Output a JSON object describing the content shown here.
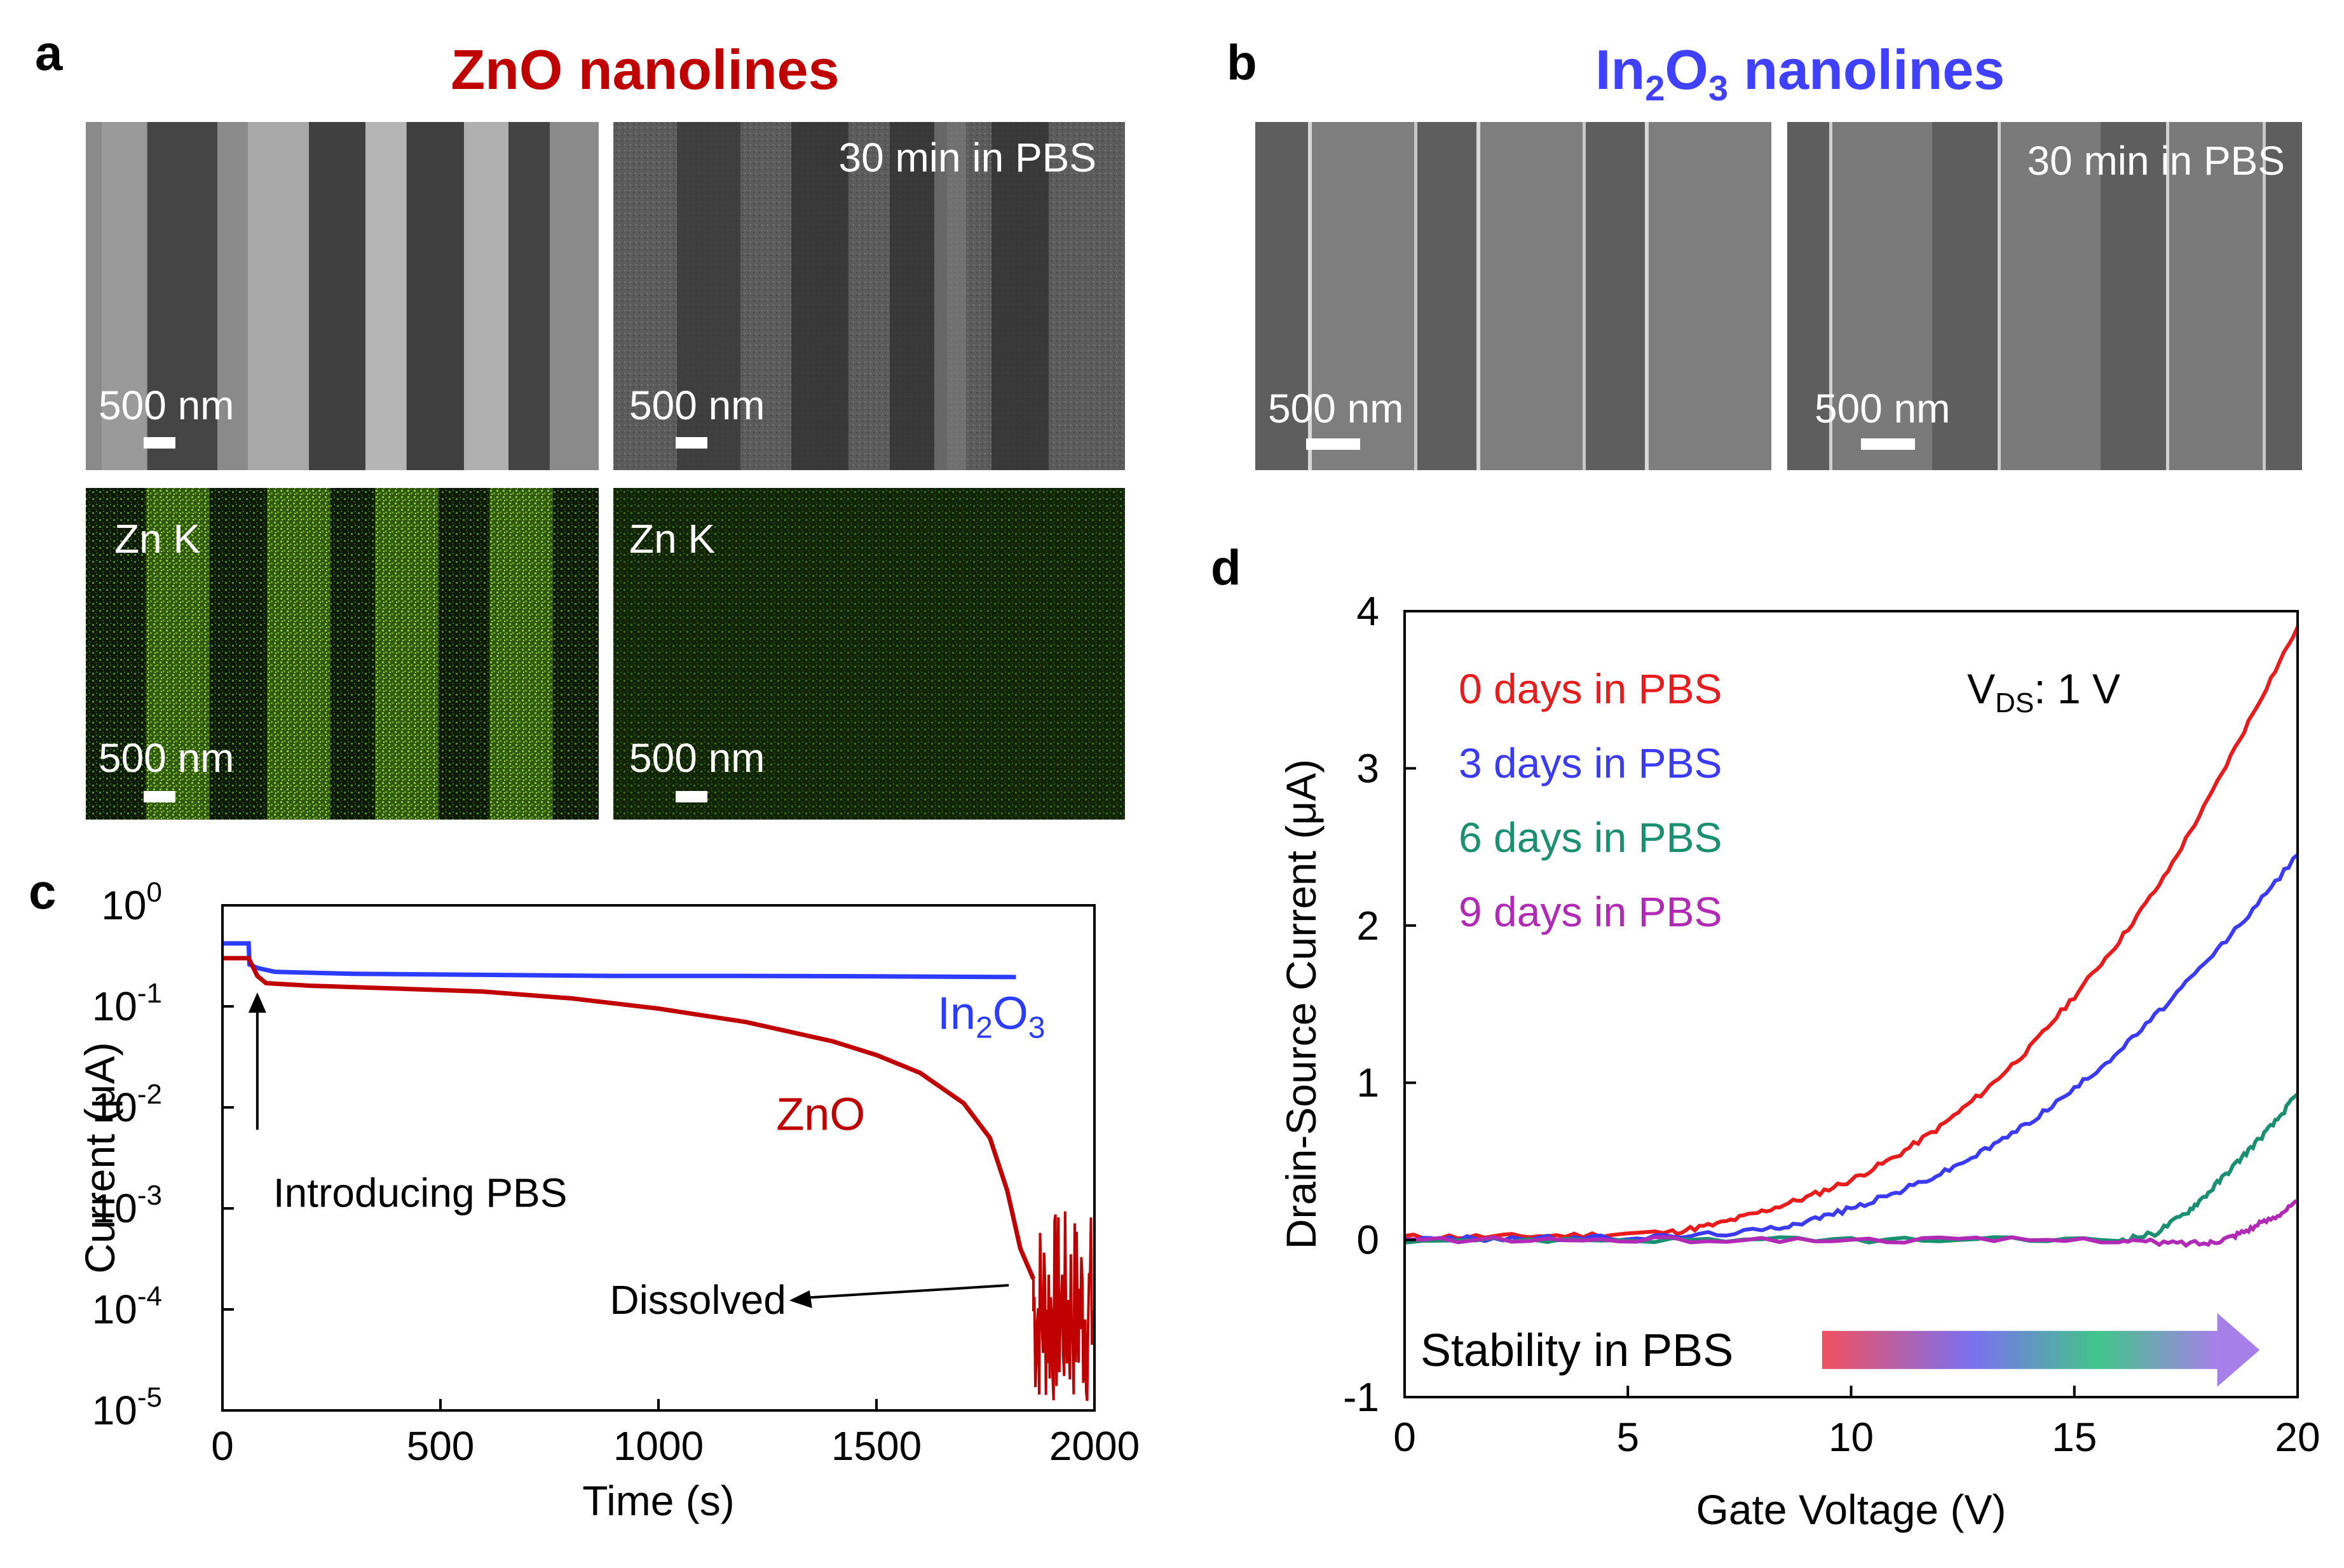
{
  "panel_labels": {
    "a": "a",
    "b": "b",
    "c": "c",
    "d": "d"
  },
  "panel_a": {
    "title": "ZnO nanolines",
    "title_color": "#c00000",
    "images": [
      {
        "scale_bar": "500 nm",
        "caption": ""
      },
      {
        "scale_bar": "500 nm",
        "caption": "30 min in PBS"
      },
      {
        "scale_bar": "500 nm",
        "caption": "Zn K"
      },
      {
        "scale_bar": "500 nm",
        "caption": "Zn K"
      }
    ]
  },
  "panel_b": {
    "title_main": "In",
    "title_sub1": "2",
    "title_mid": "O",
    "title_sub2": "3",
    "title_end": " nanolines",
    "title_color": "#4040ff",
    "images": [
      {
        "scale_bar": "500 nm",
        "caption": ""
      },
      {
        "scale_bar": "500 nm",
        "caption": "30 min in PBS"
      }
    ]
  },
  "chart_data": [
    {
      "id": "c",
      "type": "line",
      "xlabel": "Time (s)",
      "ylabel": "Current (μA)",
      "xlim": [
        0,
        2000
      ],
      "ylim_log10": [
        -5,
        0
      ],
      "yscale": "log",
      "x_ticks": [
        "0",
        "500",
        "1000",
        "1500",
        "2000"
      ],
      "y_ticks": [
        {
          "base": "10",
          "exp": "0"
        },
        {
          "base": "10",
          "exp": "-1"
        },
        {
          "base": "10",
          "exp": "-2"
        },
        {
          "base": "10",
          "exp": "-3"
        },
        {
          "base": "10",
          "exp": "-4"
        },
        {
          "base": "10",
          "exp": "-5"
        }
      ],
      "series": [
        {
          "name": "In2O3",
          "label_main": "In",
          "label_sub1": "2",
          "label_mid": "O",
          "label_sub2": "3",
          "color": "#2b3cff",
          "x": [
            0,
            60,
            62,
            80,
            120,
            300,
            600,
            900,
            1200,
            1500,
            1820
          ],
          "y": [
            0.42,
            0.42,
            0.26,
            0.24,
            0.22,
            0.21,
            0.205,
            0.2,
            0.2,
            0.198,
            0.195
          ]
        },
        {
          "name": "ZnO",
          "label_main": "ZnO",
          "color": "#c00000",
          "x": [
            0,
            60,
            80,
            100,
            200,
            400,
            600,
            800,
            1000,
            1200,
            1400,
            1500,
            1600,
            1700,
            1760,
            1800,
            1830,
            1860
          ],
          "y": [
            0.3,
            0.3,
            0.2,
            0.17,
            0.16,
            0.15,
            0.14,
            0.12,
            0.095,
            0.07,
            0.045,
            0.033,
            0.022,
            0.011,
            0.005,
            0.0015,
            0.0004,
            0.0002
          ],
          "noise_region": {
            "x_start": 1860,
            "x_end": 2000,
            "y_min": 1e-05,
            "y_max": 0.001
          }
        }
      ],
      "annotations": [
        {
          "text": "Introducing PBS",
          "points_to_x": 80
        },
        {
          "text": "Dissolved",
          "points_to_x": 1840
        }
      ]
    },
    {
      "id": "d",
      "type": "line",
      "xlabel": "Gate Voltage (V)",
      "ylabel": "Drain-Source Current (μA)",
      "xlim": [
        0,
        20
      ],
      "ylim": [
        -1,
        4
      ],
      "x_ticks": [
        "0",
        "5",
        "10",
        "15",
        "20"
      ],
      "y_ticks": [
        "-1",
        "0",
        "1",
        "2",
        "3",
        "4"
      ],
      "note_main": "V",
      "note_sub": "DS",
      "note_end": ": 1 V",
      "gradient_label": "Stability in PBS",
      "series": [
        {
          "name": "0 days in PBS",
          "color": "#e81c1c",
          "x": [
            0,
            2,
            4,
            6,
            7,
            8,
            9,
            10,
            11,
            12,
            13,
            14,
            15,
            16,
            17,
            18,
            19,
            20
          ],
          "y": [
            0.02,
            0.02,
            0.03,
            0.05,
            0.1,
            0.18,
            0.27,
            0.38,
            0.53,
            0.72,
            0.95,
            1.22,
            1.55,
            1.9,
            2.3,
            2.8,
            3.35,
            3.9
          ]
        },
        {
          "name": "3 days in PBS",
          "color": "#3b3bf5",
          "x": [
            0,
            2,
            4,
            6,
            8,
            9,
            10,
            11,
            12,
            13,
            14,
            15,
            16,
            17,
            18,
            19,
            20
          ],
          "y": [
            0.0,
            0.01,
            0.01,
            0.02,
            0.06,
            0.12,
            0.2,
            0.3,
            0.42,
            0.57,
            0.75,
            0.96,
            1.2,
            1.48,
            1.78,
            2.1,
            2.45
          ]
        },
        {
          "name": "6 days in PBS",
          "color": "#1a9070",
          "x": [
            0,
            4,
            8,
            12,
            16,
            16.8,
            17.5,
            18,
            18.5,
            19,
            19.5,
            20
          ],
          "y": [
            0.0,
            0.0,
            0.0,
            0.0,
            0.0,
            0.04,
            0.17,
            0.3,
            0.45,
            0.6,
            0.75,
            0.93
          ]
        },
        {
          "name": "9 days in PBS",
          "color": "#b02ab6",
          "x": [
            0,
            4,
            8,
            12,
            16,
            17,
            18,
            18.5,
            19,
            19.5,
            20
          ],
          "y": [
            0.0,
            0.0,
            0.0,
            0.0,
            0.0,
            -0.02,
            -0.02,
            0.02,
            0.08,
            0.15,
            0.24
          ]
        }
      ]
    }
  ]
}
